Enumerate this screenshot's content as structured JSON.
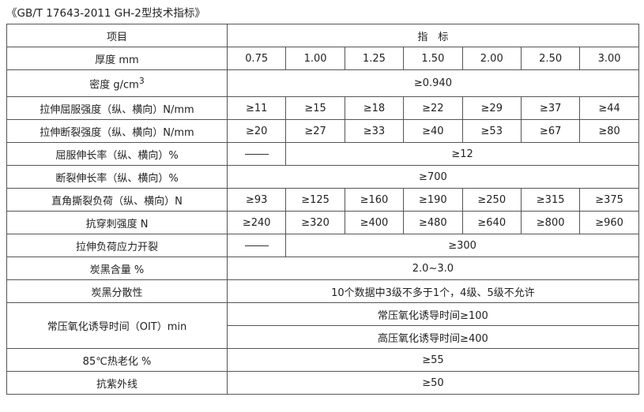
{
  "title": "《GB/T 17643-2011 GH-2型技术指标》",
  "header": {
    "item": "项目",
    "spec": "指　标"
  },
  "thickness": {
    "label": "厚度 mm",
    "values": [
      "0.75",
      "1.00",
      "1.25",
      "1.50",
      "2.00",
      "2.50",
      "3.00"
    ]
  },
  "density": {
    "label": "密度 g/cm",
    "sup": "3",
    "value": "≥0.940"
  },
  "yield_strength": {
    "label": "拉伸屈服强度（纵、横向）N/mm",
    "values": [
      "≥11",
      "≥15",
      "≥18",
      "≥22",
      "≥29",
      "≥37",
      "≥44"
    ]
  },
  "break_strength": {
    "label": "拉伸断裂强度（纵、横向）N/mm",
    "values": [
      "≥20",
      "≥27",
      "≥33",
      "≥40",
      "≥53",
      "≥67",
      "≥80"
    ]
  },
  "yield_elongation": {
    "label": "屈服伸长率（纵、横向）%",
    "first": "——",
    "value": "≥12"
  },
  "break_elongation": {
    "label": "断裂伸长率（纵、横向）%",
    "value": "≥700"
  },
  "tear_load": {
    "label": "直角撕裂负荷（纵、横向）N",
    "values": [
      "≥93",
      "≥125",
      "≥160",
      "≥190",
      "≥250",
      "≥315",
      "≥375"
    ]
  },
  "puncture": {
    "label": "抗穿刺强度 N",
    "values": [
      "≥240",
      "≥320",
      "≥400",
      "≥480",
      "≥640",
      "≥800",
      "≥960"
    ]
  },
  "stress_crack": {
    "label": "拉伸负荷应力开裂",
    "first": "——",
    "value": "≥300"
  },
  "carbon_content": {
    "label": "炭黑含量 %",
    "value": "2.0~3.0"
  },
  "carbon_dispersion": {
    "label": "炭黑分散性",
    "value": "10个数据中3级不多于1个，4级、5级不允许"
  },
  "oit": {
    "label": "常压氧化诱导时间（OIT）min",
    "std": "常压氧化诱导时间≥100",
    "high": "高压氧化诱导时间≥400"
  },
  "heat_aging": {
    "label": "85℃热老化 %",
    "value": "≥55"
  },
  "uv": {
    "label": "抗紫外线",
    "value": "≥50"
  }
}
